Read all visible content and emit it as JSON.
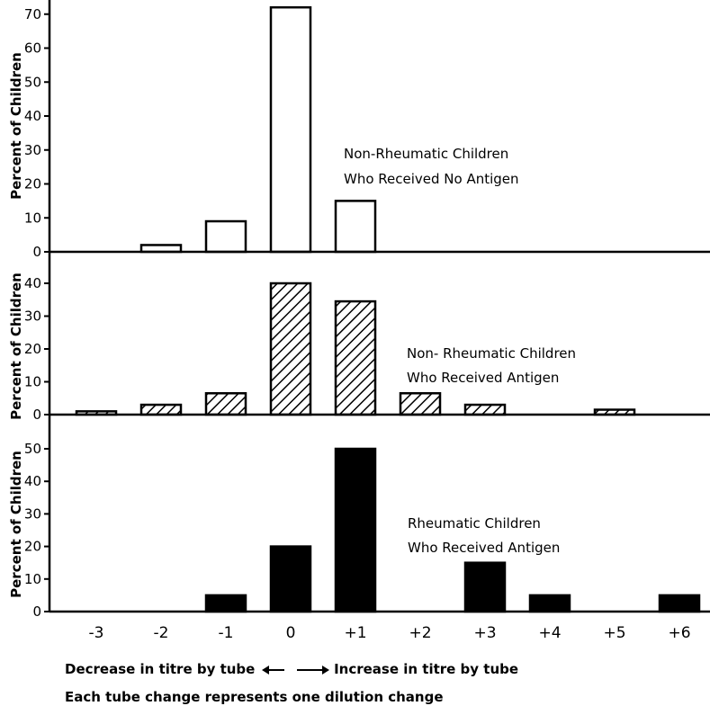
{
  "chart_data": [
    {
      "type": "bar",
      "categories": [
        "-3",
        "-2",
        "-1",
        "0",
        "+1",
        "+2",
        "+3",
        "+4",
        "+5",
        "+6"
      ],
      "values": [
        0,
        2,
        9,
        72,
        15,
        0,
        0,
        0,
        0,
        0
      ],
      "ylabel": "Percent of Children",
      "ylim": [
        0,
        70
      ],
      "yticks": [
        0,
        10,
        20,
        30,
        40,
        50,
        60,
        70
      ],
      "series_label": [
        "Non-Rheumatic Children",
        "Who Received No Antigen"
      ],
      "fill": "open"
    },
    {
      "type": "bar",
      "categories": [
        "-3",
        "-2",
        "-1",
        "0",
        "+1",
        "+2",
        "+3",
        "+4",
        "+5",
        "+6"
      ],
      "values": [
        1,
        3,
        6.5,
        40,
        34.5,
        6.5,
        3,
        0,
        1.5,
        0
      ],
      "ylabel": "Percent of Children",
      "ylim": [
        0,
        40
      ],
      "yticks": [
        0,
        10,
        20,
        30,
        40
      ],
      "series_label": [
        "Non- Rheumatic Children",
        "Who Received Antigen"
      ],
      "fill": "hatched"
    },
    {
      "type": "bar",
      "categories": [
        "-3",
        "-2",
        "-1",
        "0",
        "+1",
        "+2",
        "+3",
        "+4",
        "+5",
        "+6"
      ],
      "values": [
        0,
        0,
        5,
        20,
        50,
        0,
        15,
        5,
        0,
        5
      ],
      "ylabel": "Percent of Children",
      "ylim": [
        0,
        50
      ],
      "yticks": [
        0,
        10,
        20,
        30,
        40,
        50
      ],
      "series_label": [
        "Rheumatic Children",
        "Who Received Antigen"
      ],
      "fill": "solid"
    }
  ],
  "x_tick_labels": [
    "-3",
    "-2",
    "-1",
    "0",
    "+1",
    "+2",
    "+3",
    "+4",
    "+5",
    "+6"
  ],
  "footer": {
    "decrease": "Decrease in titre by tube",
    "increase": "Increase in titre by tube",
    "note": "Each tube change represents one dilution change"
  },
  "colors": {
    "ink": "#000000",
    "background": "#ffffff"
  }
}
